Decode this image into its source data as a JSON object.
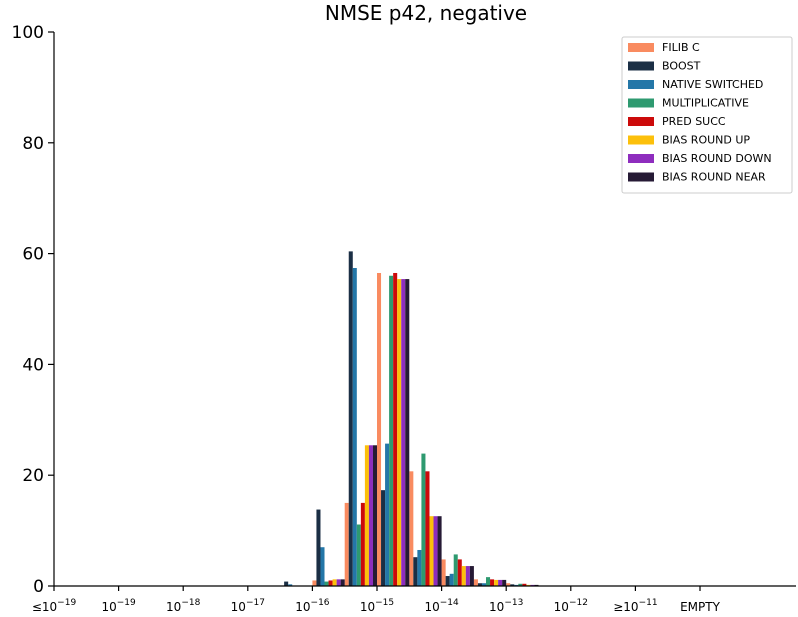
{
  "chart_data": {
    "type": "bar",
    "title": "NMSE p42, negative",
    "xlabel": "",
    "ylabel": "",
    "ylim": [
      0,
      100
    ],
    "yticks": [
      0,
      20,
      40,
      60,
      80,
      100
    ],
    "x_tick_labels": [
      {
        "prefix": "≤",
        "base": "10",
        "exp": "−19"
      },
      {
        "prefix": "",
        "base": "10",
        "exp": "−19"
      },
      {
        "prefix": "",
        "base": "10",
        "exp": "−18"
      },
      {
        "prefix": "",
        "base": "10",
        "exp": "−17"
      },
      {
        "prefix": "",
        "base": "10",
        "exp": "−16"
      },
      {
        "prefix": "",
        "base": "10",
        "exp": "−15"
      },
      {
        "prefix": "",
        "base": "10",
        "exp": "−14"
      },
      {
        "prefix": "",
        "base": "10",
        "exp": "−13"
      },
      {
        "prefix": "",
        "base": "10",
        "exp": "−12"
      },
      {
        "prefix": "≥",
        "base": "10",
        "exp": "−11"
      },
      {
        "prefix": "",
        "base": "EMPTY",
        "exp": ""
      }
    ],
    "bins": [
      -16.5,
      -16.0,
      -15.5,
      -15.0,
      -14.5,
      -14.0,
      -13.5,
      -13.0
    ],
    "legend_position": "top-right",
    "grid": false,
    "series": [
      {
        "name": "FILIB C",
        "color": "#f98b60",
        "values": [
          0,
          1.0,
          15.0,
          56.5,
          20.7,
          4.8,
          1.2,
          0.5
        ]
      },
      {
        "name": "BOOST",
        "color": "#1b2f45",
        "values": [
          0.8,
          13.8,
          60.4,
          17.3,
          5.2,
          1.8,
          0.5,
          0.3
        ]
      },
      {
        "name": "NATIVE SWITCHED",
        "color": "#2477a8",
        "values": [
          0.3,
          7.0,
          57.4,
          25.7,
          6.5,
          2.2,
          0.5,
          0.2
        ]
      },
      {
        "name": "MULTIPLICATIVE",
        "color": "#2e9a70",
        "values": [
          0,
          0.8,
          11.1,
          56.0,
          23.9,
          5.7,
          1.6,
          0.4
        ]
      },
      {
        "name": "PRED SUCC",
        "color": "#cc0a0a",
        "values": [
          0,
          1.0,
          15.0,
          56.5,
          20.7,
          4.8,
          1.2,
          0.4
        ]
      },
      {
        "name": "BIAS ROUND UP",
        "color": "#fcc00b",
        "values": [
          0,
          1.2,
          25.4,
          55.4,
          12.6,
          3.6,
          1.1,
          0.2
        ]
      },
      {
        "name": "BIAS ROUND DOWN",
        "color": "#8e2dbe",
        "values": [
          0,
          1.2,
          25.4,
          55.4,
          12.6,
          3.6,
          1.1,
          0.2
        ]
      },
      {
        "name": "BIAS ROUND NEAR",
        "color": "#261a35",
        "values": [
          0,
          1.2,
          25.4,
          55.4,
          12.6,
          3.6,
          1.1,
          0.2
        ]
      }
    ]
  }
}
